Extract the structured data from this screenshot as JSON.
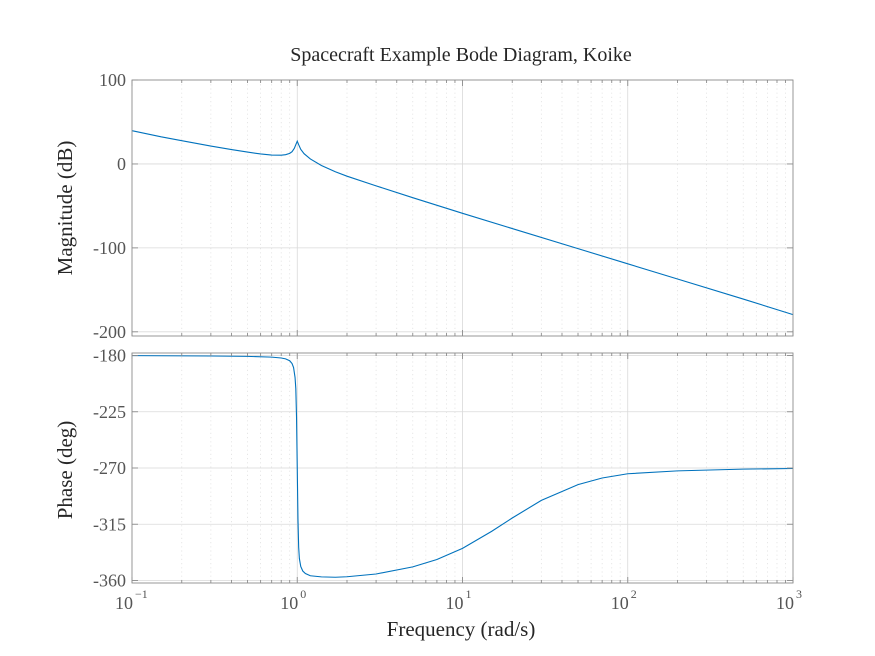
{
  "chart_data": [
    {
      "type": "line",
      "panel": "magnitude",
      "title": "Spacecraft Example Bode Diagram, Koike",
      "ylabel": "Magnitude (dB)",
      "xlabel": "",
      "xscale": "log",
      "xlim": [
        0.1,
        1000
      ],
      "ylim": [
        -205,
        100
      ],
      "yticks": [
        "100",
        "0",
        "-100",
        "-200"
      ],
      "ytick_values": [
        100,
        0,
        -100,
        -200
      ],
      "grid": true,
      "line_color": "#0072BD",
      "x": [
        0.1,
        0.15,
        0.2,
        0.3,
        0.4,
        0.5,
        0.6,
        0.7,
        0.8,
        0.85,
        0.9,
        0.93,
        0.96,
        0.98,
        1.0,
        1.02,
        1.05,
        1.1,
        1.2,
        1.4,
        1.7,
        2,
        3,
        5,
        10,
        20,
        50,
        100,
        200,
        500,
        1000
      ],
      "y": [
        39.6,
        32.3,
        27.7,
        21.3,
        17.1,
        14.1,
        11.9,
        10.6,
        10.4,
        11.0,
        12.6,
        14.6,
        18.6,
        22.9,
        27.1,
        22.9,
        17.4,
        12.2,
        5.9,
        -1.8,
        -9.3,
        -14.6,
        -26.1,
        -40.2,
        -58.8,
        -77.0,
        -100.9,
        -119.0,
        -137.1,
        -161.0,
        -179.5
      ]
    },
    {
      "type": "line",
      "panel": "phase",
      "xlabel": "Frequency (rad/s)",
      "ylabel": "Phase (deg)",
      "xscale": "log",
      "xlim": [
        0.1,
        1000
      ],
      "xticks": [
        "10",
        "10",
        "10",
        "10",
        "10"
      ],
      "xtick_exponents": [
        "−1",
        "0",
        "1",
        "2",
        "3"
      ],
      "ylim": [
        -362,
        -178
      ],
      "yticks": [
        "-180",
        "-225",
        "-270",
        "-315",
        "-360"
      ],
      "ytick_values": [
        -180,
        -225,
        -270,
        -315,
        -360
      ],
      "grid": true,
      "line_color": "#0072BD",
      "x": [
        0.1,
        0.3,
        0.5,
        0.7,
        0.8,
        0.85,
        0.9,
        0.93,
        0.95,
        0.97,
        0.98,
        0.99,
        1.0,
        1.01,
        1.02,
        1.03,
        1.05,
        1.08,
        1.12,
        1.2,
        1.4,
        1.7,
        2,
        3,
        5,
        7,
        10,
        15,
        20,
        30,
        50,
        70,
        100,
        200,
        500,
        1000
      ],
      "y": [
        -180.1,
        -180.4,
        -180.7,
        -181.3,
        -182.0,
        -182.7,
        -184.2,
        -186.4,
        -189.6,
        -197.6,
        -206.5,
        -229.3,
        -270.0,
        -310.7,
        -333.5,
        -342.4,
        -348.8,
        -352.4,
        -354.4,
        -356.2,
        -357.1,
        -357.4,
        -357.0,
        -354.8,
        -349.1,
        -343.2,
        -334.3,
        -320.7,
        -310.0,
        -295.9,
        -283.3,
        -278.0,
        -274.6,
        -272.3,
        -270.9,
        -270.4
      ]
    }
  ]
}
